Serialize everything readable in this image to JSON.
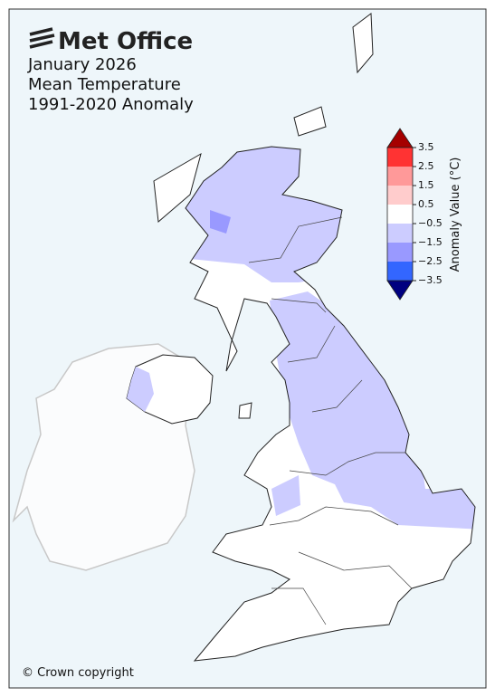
{
  "logo": "Met Office",
  "title": [
    "January 2026",
    "Mean Temperature",
    "1991-2020 Anomaly"
  ],
  "colorbar": {
    "label": "Anomaly Value (°C)",
    "ticks": [
      3.5,
      2.5,
      1.5,
      0.5,
      {
        "value": -0.5,
        "label": "−0.5"
      },
      {
        "value": -1.5,
        "label": "−1.5"
      },
      {
        "value": -2.5,
        "label": "−2.5"
      },
      {
        "value": -3.5,
        "label": "−3.5"
      }
    ],
    "colors": [
      "#a50000",
      "#ff3333",
      "#ff9999",
      "#ffcccc",
      "#ffffff",
      "#ccccff",
      "#9999ff",
      "#3366ff",
      "#000080"
    ]
  },
  "copyright": "© Crown copyright"
}
